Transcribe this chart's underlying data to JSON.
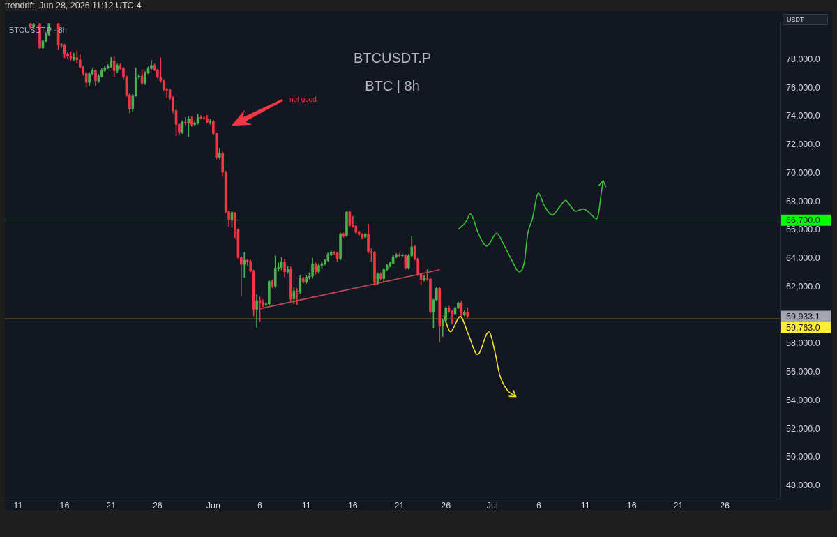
{
  "chart_data": {
    "type": "candlestick",
    "title": "BTCUSDT.P",
    "subtitle": "BTC | 8h",
    "ylabel": "USDT",
    "annotations": [
      "trendrift, Jun 28, 2026 11:12 UTC-4",
      "BTCUSDT.P · 8h",
      "not good",
      "59,933.1"
    ],
    "xlim": [
      "2026-05-09T14:00",
      "2026-07-31T22:00"
    ],
    "xticks": [
      {
        "value": "2026-05-11",
        "label": "11"
      },
      {
        "value": "2026-05-16",
        "label": "16"
      },
      {
        "value": "2026-05-21",
        "label": "21"
      },
      {
        "value": "2026-05-26",
        "label": "26"
      },
      {
        "value": "2026-06-01",
        "label": "Jun"
      },
      {
        "value": "2026-06-06",
        "label": "6"
      },
      {
        "value": "2026-06-11",
        "label": "11"
      },
      {
        "value": "2026-06-16",
        "label": "16"
      },
      {
        "value": "2026-06-21",
        "label": "21"
      },
      {
        "value": "2026-06-26",
        "label": "26"
      },
      {
        "value": "2026-07-01",
        "label": "Jul"
      },
      {
        "value": "2026-07-06",
        "label": "6"
      },
      {
        "value": "2026-07-11",
        "label": "11"
      },
      {
        "value": "2026-07-16",
        "label": "16"
      },
      {
        "value": "2026-07-21",
        "label": "21"
      },
      {
        "value": "2026-07-26",
        "label": "26"
      }
    ],
    "ylim": [
      47100,
      80600
    ],
    "yticks": [
      {
        "value": 48000,
        "label": "48,000.0"
      },
      {
        "value": 50000,
        "label": "50,000.0"
      },
      {
        "value": 52000,
        "label": "52,000.0"
      },
      {
        "value": 54000,
        "label": "54,000.0"
      },
      {
        "value": 56000,
        "label": "56,000.0"
      },
      {
        "value": 58000,
        "label": "58,000.0"
      },
      {
        "value": 62000,
        "label": "62,000.0"
      },
      {
        "value": 64000,
        "label": "64,000.0"
      },
      {
        "value": 66000,
        "label": "66,000.0"
      },
      {
        "value": 68000,
        "label": "68,000.0"
      },
      {
        "value": 70000,
        "label": "70,000.0"
      },
      {
        "value": 72000,
        "label": "72,000.0"
      },
      {
        "value": 74000,
        "label": "74,000.0"
      },
      {
        "value": 76000,
        "label": "76,000.0"
      },
      {
        "value": 78000,
        "label": "78,000.0"
      }
    ],
    "ref_lines": [
      {
        "axis": "y",
        "value": 66700,
        "label": "66,700.0",
        "color": "#00ff00"
      },
      {
        "axis": "y",
        "value": 59763,
        "label": "59,763.0",
        "color": "#ffeb3b"
      }
    ],
    "x": [
      "2026-05-12T08:00",
      "2026-05-12T16:00",
      "2026-05-13T08:00",
      "2026-05-13T16:00",
      "2026-05-14T00:00",
      "2026-05-14T08:00",
      "2026-05-15T08:00",
      "2026-05-15T16:00",
      "2026-05-16T00:00",
      "2026-05-16T08:00",
      "2026-05-16T16:00",
      "2026-05-17T00:00",
      "2026-05-17T08:00",
      "2026-05-17T16:00",
      "2026-05-18T00:00",
      "2026-05-18T08:00",
      "2026-05-18T16:00",
      "2026-05-19T00:00",
      "2026-05-19T08:00",
      "2026-05-19T16:00",
      "2026-05-20T00:00",
      "2026-05-20T08:00",
      "2026-05-20T16:00",
      "2026-05-21T00:00",
      "2026-05-21T08:00",
      "2026-05-21T16:00",
      "2026-05-22T00:00",
      "2026-05-22T08:00",
      "2026-05-22T16:00",
      "2026-05-23T00:00",
      "2026-05-23T08:00",
      "2026-05-23T16:00",
      "2026-05-24T00:00",
      "2026-05-24T08:00",
      "2026-05-24T16:00",
      "2026-05-25T00:00",
      "2026-05-25T08:00",
      "2026-05-25T16:00",
      "2026-05-26T00:00",
      "2026-05-26T08:00",
      "2026-05-26T16:00",
      "2026-05-27T00:00",
      "2026-05-27T08:00",
      "2026-05-27T16:00",
      "2026-05-28T00:00",
      "2026-05-28T08:00",
      "2026-05-28T16:00",
      "2026-05-29T00:00",
      "2026-05-29T08:00",
      "2026-05-29T16:00",
      "2026-05-30T00:00",
      "2026-05-30T08:00",
      "2026-05-30T16:00",
      "2026-05-31T00:00",
      "2026-05-31T08:00",
      "2026-05-31T16:00",
      "2026-06-01T00:00",
      "2026-06-01T08:00",
      "2026-06-01T16:00",
      "2026-06-02T00:00",
      "2026-06-02T08:00",
      "2026-06-02T16:00",
      "2026-06-03T00:00",
      "2026-06-03T08:00",
      "2026-06-03T16:00",
      "2026-06-04T00:00",
      "2026-06-04T08:00",
      "2026-06-04T16:00",
      "2026-06-05T00:00",
      "2026-06-05T08:00",
      "2026-06-05T16:00",
      "2026-06-06T00:00",
      "2026-06-06T08:00",
      "2026-06-06T16:00",
      "2026-06-07T00:00",
      "2026-06-07T08:00",
      "2026-06-07T16:00",
      "2026-06-08T00:00",
      "2026-06-08T08:00",
      "2026-06-08T16:00",
      "2026-06-09T00:00",
      "2026-06-09T08:00",
      "2026-06-09T16:00",
      "2026-06-10T00:00",
      "2026-06-10T08:00",
      "2026-06-10T16:00",
      "2026-06-11T00:00",
      "2026-06-11T08:00",
      "2026-06-11T16:00",
      "2026-06-12T00:00",
      "2026-06-12T08:00",
      "2026-06-12T16:00",
      "2026-06-13T00:00",
      "2026-06-13T08:00",
      "2026-06-13T16:00",
      "2026-06-14T00:00",
      "2026-06-14T08:00",
      "2026-06-14T16:00",
      "2026-06-15T00:00",
      "2026-06-15T08:00",
      "2026-06-15T16:00",
      "2026-06-16T00:00",
      "2026-06-16T08:00",
      "2026-06-16T16:00",
      "2026-06-17T00:00",
      "2026-06-17T08:00",
      "2026-06-17T16:00",
      "2026-06-18T00:00",
      "2026-06-18T08:00",
      "2026-06-18T16:00",
      "2026-06-19T00:00",
      "2026-06-19T08:00",
      "2026-06-19T16:00",
      "2026-06-20T00:00",
      "2026-06-20T08:00",
      "2026-06-20T16:00",
      "2026-06-21T00:00",
      "2026-06-21T08:00",
      "2026-06-21T16:00",
      "2026-06-22T00:00",
      "2026-06-22T08:00",
      "2026-06-22T16:00",
      "2026-06-23T00:00",
      "2026-06-23T08:00",
      "2026-06-23T16:00",
      "2026-06-24T00:00",
      "2026-06-24T08:00",
      "2026-06-24T16:00",
      "2026-06-25T00:00",
      "2026-06-25T08:00",
      "2026-06-25T16:00",
      "2026-06-26T00:00",
      "2026-06-26T08:00",
      "2026-06-26T16:00",
      "2026-06-27T00:00",
      "2026-06-27T08:00",
      "2026-06-27T16:00",
      "2026-06-28T00:00",
      "2026-06-28T08:00"
    ],
    "ohlc": [
      [
        80540,
        80560,
        80200,
        80300
      ],
      [
        80300,
        80560,
        80250,
        80480
      ],
      [
        80540,
        80560,
        78780,
        78820
      ],
      [
        78820,
        79380,
        78780,
        79300
      ],
      [
        79300,
        79820,
        79250,
        79750
      ],
      [
        79750,
        80560,
        79700,
        80540
      ],
      [
        80540,
        80560,
        78710,
        79060
      ],
      [
        79060,
        79150,
        78850,
        78980
      ],
      [
        78980,
        79100,
        78130,
        78400
      ],
      [
        78400,
        78500,
        78050,
        78230
      ],
      [
        78230,
        78560,
        77950,
        78100
      ],
      [
        78100,
        78450,
        77900,
        78130
      ],
      [
        78130,
        78630,
        77750,
        77990
      ],
      [
        77990,
        78360,
        77400,
        77460
      ],
      [
        77460,
        77550,
        76900,
        77030
      ],
      [
        77030,
        77100,
        76070,
        76390
      ],
      [
        76390,
        77100,
        76150,
        77000
      ],
      [
        77000,
        77350,
        76950,
        77220
      ],
      [
        77220,
        77300,
        76150,
        76500
      ],
      [
        76500,
        76950,
        76400,
        76830
      ],
      [
        76830,
        77350,
        76750,
        77220
      ],
      [
        77220,
        77550,
        77150,
        77430
      ],
      [
        77430,
        77650,
        77350,
        77510
      ],
      [
        77510,
        78150,
        77450,
        77860
      ],
      [
        77860,
        78230,
        76760,
        77220
      ],
      [
        77220,
        77700,
        77100,
        77590
      ],
      [
        77590,
        77700,
        77300,
        77380
      ],
      [
        77380,
        77450,
        76630,
        76790
      ],
      [
        76790,
        76850,
        75400,
        75510
      ],
      [
        75510,
        75600,
        74240,
        74560
      ],
      [
        74560,
        75550,
        74320,
        75470
      ],
      [
        75470,
        77400,
        75400,
        76760
      ],
      [
        76760,
        76950,
        76650,
        76840
      ],
      [
        76840,
        77300,
        76250,
        76350
      ],
      [
        76350,
        77150,
        76250,
        77070
      ],
      [
        77070,
        77500,
        77000,
        77380
      ],
      [
        77380,
        77960,
        77300,
        77590
      ],
      [
        77590,
        77700,
        77200,
        77270
      ],
      [
        77270,
        77350,
        76700,
        76760
      ],
      [
        76760,
        78130,
        76400,
        76500
      ],
      [
        76500,
        76600,
        75800,
        75910
      ],
      [
        75910,
        76000,
        75310,
        75860
      ],
      [
        75860,
        75950,
        75150,
        75310
      ],
      [
        75310,
        75400,
        74250,
        74400
      ],
      [
        74400,
        74500,
        72640,
        73440
      ],
      [
        73440,
        73500,
        72700,
        72910
      ],
      [
        72910,
        73700,
        72800,
        73600
      ],
      [
        73600,
        73920,
        73400,
        73520
      ],
      [
        73520,
        74000,
        72580,
        73830
      ],
      [
        73830,
        74000,
        73300,
        73440
      ],
      [
        73440,
        73700,
        73350,
        73550
      ],
      [
        73550,
        74150,
        73450,
        73920
      ],
      [
        73920,
        74050,
        73800,
        73880
      ],
      [
        73880,
        74000,
        73780,
        73840
      ],
      [
        73840,
        74080,
        73550,
        73600
      ],
      [
        73600,
        73800,
        73450,
        73650
      ],
      [
        73650,
        73750,
        72700,
        72800
      ],
      [
        72800,
        72850,
        71000,
        71130
      ],
      [
        71130,
        71770,
        71000,
        71400
      ],
      [
        71400,
        71500,
        69770,
        70090
      ],
      [
        70090,
        70150,
        67200,
        67300
      ],
      [
        67300,
        67350,
        66260,
        66740
      ],
      [
        66740,
        67300,
        66200,
        67220
      ],
      [
        67220,
        67250,
        65460,
        66050
      ],
      [
        66050,
        66100,
        64000,
        64110
      ],
      [
        64110,
        64150,
        61390,
        63590
      ],
      [
        63590,
        64430,
        62670,
        63870
      ],
      [
        63870,
        63950,
        63500,
        63800
      ],
      [
        63800,
        63900,
        63050,
        63120
      ],
      [
        63120,
        63200,
        59960,
        60430
      ],
      [
        60430,
        61470,
        59160,
        61040
      ],
      [
        61040,
        61300,
        59560,
        60880
      ],
      [
        60880,
        61100,
        60600,
        60750
      ],
      [
        60750,
        60900,
        60650,
        60800
      ],
      [
        60800,
        62450,
        60700,
        62380
      ],
      [
        62380,
        62500,
        61950,
        62060
      ],
      [
        62060,
        64190,
        61950,
        63310
      ],
      [
        63310,
        63700,
        63100,
        63370
      ],
      [
        63370,
        64100,
        63200,
        63760
      ],
      [
        63760,
        63950,
        62700,
        63070
      ],
      [
        63070,
        63450,
        62950,
        63230
      ],
      [
        63230,
        63400,
        61050,
        61150
      ],
      [
        61150,
        61950,
        60800,
        61710
      ],
      [
        61710,
        61900,
        60750,
        61640
      ],
      [
        61640,
        62830,
        61550,
        62590
      ],
      [
        62590,
        62700,
        62250,
        62350
      ],
      [
        62350,
        62800,
        62250,
        62700
      ],
      [
        62700,
        63000,
        62550,
        62760
      ],
      [
        62760,
        64020,
        62600,
        63630
      ],
      [
        63630,
        63700,
        62900,
        63070
      ],
      [
        63070,
        63650,
        62950,
        63500
      ],
      [
        63500,
        63750,
        63300,
        63620
      ],
      [
        63620,
        63950,
        63550,
        63870
      ],
      [
        63870,
        64400,
        63800,
        64300
      ],
      [
        64300,
        64550,
        64200,
        64430
      ],
      [
        64430,
        64500,
        64300,
        64400
      ],
      [
        64400,
        64450,
        63790,
        63980
      ],
      [
        63980,
        65800,
        63900,
        65730
      ],
      [
        65730,
        65800,
        65500,
        65620
      ],
      [
        65620,
        67300,
        65550,
        67270
      ],
      [
        67270,
        67300,
        66250,
        66340
      ],
      [
        66340,
        66980,
        66200,
        66290
      ],
      [
        66290,
        66350,
        65750,
        65860
      ],
      [
        65860,
        65950,
        65600,
        65700
      ],
      [
        65700,
        65750,
        65400,
        65510
      ],
      [
        65510,
        65800,
        65450,
        65700
      ],
      [
        65700,
        66420,
        64400,
        64500
      ],
      [
        64500,
        64700,
        63800,
        64430
      ],
      [
        64430,
        64500,
        62140,
        62320
      ],
      [
        62320,
        63000,
        62150,
        62910
      ],
      [
        62910,
        63000,
        62500,
        62590
      ],
      [
        62590,
        63300,
        62300,
        63230
      ],
      [
        63230,
        63600,
        63150,
        63500
      ],
      [
        63500,
        63750,
        63400,
        63660
      ],
      [
        63660,
        64250,
        63600,
        64140
      ],
      [
        64140,
        64350,
        64050,
        64260
      ],
      [
        64260,
        64350,
        64100,
        64200
      ],
      [
        64200,
        64300,
        64100,
        64230
      ],
      [
        64230,
        64300,
        63250,
        63350
      ],
      [
        63350,
        64300,
        63250,
        64200
      ],
      [
        64200,
        65580,
        64100,
        64820
      ],
      [
        64820,
        64900,
        63900,
        63980
      ],
      [
        63980,
        64050,
        62750,
        62860
      ],
      [
        62860,
        62950,
        62190,
        62510
      ],
      [
        62510,
        62800,
        62400,
        62600
      ],
      [
        62600,
        63230,
        62450,
        62550
      ],
      [
        62550,
        62650,
        60150,
        60240
      ],
      [
        60240,
        61150,
        59100,
        61080
      ],
      [
        61080,
        62000,
        61000,
        61900
      ],
      [
        61900,
        62000,
        58120,
        59240
      ],
      [
        59240,
        59750,
        58520,
        59640
      ],
      [
        59640,
        60600,
        59500,
        60520
      ],
      [
        60520,
        60650,
        60200,
        60280
      ],
      [
        60280,
        60350,
        59400,
        60120
      ],
      [
        60120,
        60600,
        60050,
        60520
      ],
      [
        60520,
        60950,
        60450,
        60870
      ],
      [
        60870,
        61010,
        59950,
        60040
      ],
      [
        60040,
        60350,
        59950,
        60230
      ],
      [
        60230,
        60520,
        59850,
        59933.1
      ]
    ],
    "colors": [
      "#f23645",
      "#4caf50",
      "#f23645",
      "#4caf50",
      "#4caf50",
      "#4caf50",
      "#f23645",
      "#f23645",
      "#f23645",
      "#f23645",
      "#f23645",
      "#4caf50",
      "#f23645",
      "#f23645",
      "#f23645",
      "#f23645",
      "#4caf50",
      "#4caf50",
      "#f23645",
      "#4caf50",
      "#4caf50",
      "#4caf50",
      "#4caf50",
      "#4caf50",
      "#f23645",
      "#4caf50",
      "#f23645",
      "#f23645",
      "#f23645",
      "#f23645",
      "#4caf50",
      "#4caf50",
      "#4caf50",
      "#f23645",
      "#4caf50",
      "#4caf50",
      "#4caf50",
      "#f23645",
      "#f23645",
      "#f23645",
      "#f23645",
      "#f23645",
      "#f23645",
      "#f23645",
      "#f23645",
      "#f23645",
      "#4caf50",
      "#f23645",
      "#4caf50",
      "#f23645",
      "#4caf50",
      "#4caf50",
      "#f23645",
      "#f23645",
      "#f23645",
      "#4caf50",
      "#f23645",
      "#f23645",
      "#4caf50",
      "#f23645",
      "#f23645",
      "#f23645",
      "#4caf50",
      "#f23645",
      "#f23645",
      "#f23645",
      "#4caf50",
      "#f23645",
      "#f23645",
      "#f23645",
      "#4caf50",
      "#f23645",
      "#f23645",
      "#4caf50",
      "#4caf50",
      "#f23645",
      "#4caf50",
      "#4caf50",
      "#4caf50",
      "#f23645",
      "#4caf50",
      "#f23645",
      "#4caf50",
      "#f23645",
      "#4caf50",
      "#f23645",
      "#4caf50",
      "#4caf50",
      "#4caf50",
      "#f23645",
      "#4caf50",
      "#4caf50",
      "#4caf50",
      "#4caf50",
      "#4caf50",
      "#f23645",
      "#f23645",
      "#4caf50",
      "#f23645",
      "#4caf50",
      "#f23645",
      "#f23645",
      "#f23645",
      "#f23645",
      "#f23645",
      "#4caf50",
      "#f23645",
      "#f23645",
      "#f23645",
      "#4caf50",
      "#f23645",
      "#4caf50",
      "#4caf50",
      "#4caf50",
      "#4caf50",
      "#4caf50",
      "#f23645",
      "#4caf50",
      "#f23645",
      "#4caf50",
      "#4caf50",
      "#f23645",
      "#f23645",
      "#f23645",
      "#4caf50",
      "#f23645",
      "#f23645",
      "#4caf50",
      "#4caf50",
      "#f23645",
      "#4caf50",
      "#4caf50",
      "#f23645",
      "#f23645",
      "#4caf50",
      "#4caf50",
      "#f23645",
      "#4caf50",
      "#f23645"
    ],
    "series": [
      {
        "type": "line",
        "color": "#38c138",
        "x": [
          "2026-06-27T10:00",
          "2026-06-28T04:00",
          "2026-06-28T15:00",
          "2026-06-29T13:00",
          "2026-06-30T10:00",
          "2026-07-01T11:00",
          "2026-07-02T07:00",
          "2026-07-03T01:00",
          "2026-07-03T21:00",
          "2026-07-04T11:00",
          "2026-07-04T19:00",
          "2026-07-05T07:00",
          "2026-07-05T23:00",
          "2026-07-06T13:00",
          "2026-07-07T11:00",
          "2026-07-08T05:00",
          "2026-07-08T21:00",
          "2026-07-09T12:00",
          "2026-07-09T23:00",
          "2026-07-10T18:00",
          "2026-07-11T11:00",
          "2026-07-12T05:00",
          "2026-07-12T10:00",
          "2026-07-12T17:00",
          "2026-07-12T21:00"
        ],
        "values": [
          66100,
          66580,
          67140,
          65700,
          64870,
          65780,
          64900,
          63950,
          63070,
          63790,
          65700,
          66740,
          68600,
          67780,
          67060,
          67610,
          68090,
          67610,
          67330,
          67490,
          67220,
          66790,
          67140,
          68570,
          69290
        ]
      },
      {
        "type": "line",
        "color": "#f0e130",
        "x": [
          "2026-06-25T19:00",
          "2026-06-26T12:00",
          "2026-06-27T13:00",
          "2026-06-28T10:00",
          "2026-06-29T10:00",
          "2026-06-30T15:00",
          "2026-07-01T07:00",
          "2026-07-01T19:00",
          "2026-07-02T16:00",
          "2026-07-03T07:00"
        ],
        "values": [
          59960,
          58840,
          59930,
          58680,
          57250,
          58840,
          57400,
          55810,
          54690,
          54400
        ]
      },
      {
        "type": "line",
        "color": "#c2475b",
        "x": [
          "2026-06-06T01:00",
          "2026-06-25T07:00"
        ],
        "values": [
          60470,
          63200
        ]
      }
    ]
  }
}
